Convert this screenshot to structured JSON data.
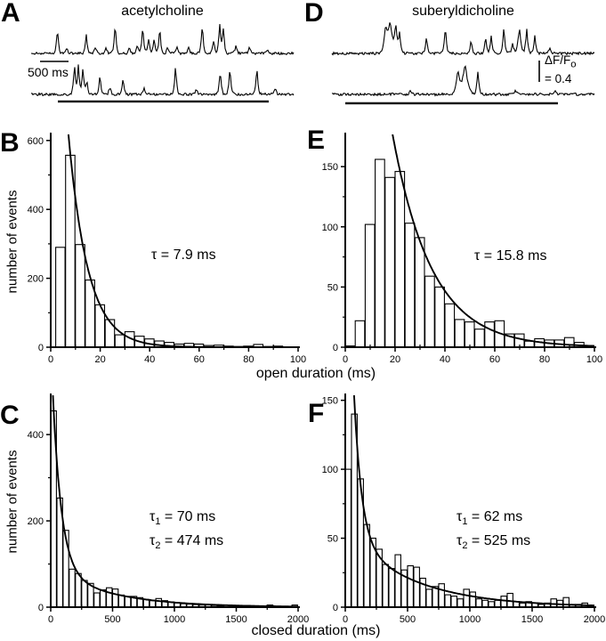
{
  "figure_color": "#000000",
  "background_color": "#ffffff",
  "traces": {
    "left": {
      "letter": "A",
      "title": "acetylcholine",
      "scalebar_label": "500 ms",
      "trace1_spikes": [
        [
          0.1,
          0.8
        ],
        [
          0.135,
          0.2
        ],
        [
          0.21,
          0.62
        ],
        [
          0.245,
          0.22
        ],
        [
          0.285,
          0.18
        ],
        [
          0.32,
          0.95
        ],
        [
          0.375,
          0.2
        ],
        [
          0.405,
          0.28
        ],
        [
          0.425,
          0.88
        ],
        [
          0.447,
          0.52
        ],
        [
          0.468,
          0.48
        ],
        [
          0.49,
          0.82
        ],
        [
          0.52,
          0.2
        ],
        [
          0.555,
          0.24
        ],
        [
          0.6,
          0.18
        ],
        [
          0.652,
          0.93
        ],
        [
          0.695,
          0.42
        ],
        [
          0.718,
          1.0
        ],
        [
          0.732,
          0.88
        ],
        [
          0.78,
          0.28
        ],
        [
          0.832,
          0.25
        ],
        [
          0.9,
          0.15
        ]
      ],
      "trace2_spikes": [
        [
          0.165,
          1.0
        ],
        [
          0.18,
          0.98
        ],
        [
          0.197,
          0.85
        ],
        [
          0.212,
          0.45
        ],
        [
          0.262,
          0.6
        ],
        [
          0.3,
          0.25
        ],
        [
          0.35,
          0.55
        ],
        [
          0.43,
          0.2
        ],
        [
          0.55,
          0.95
        ],
        [
          0.63,
          0.18
        ],
        [
          0.72,
          0.78
        ],
        [
          0.757,
          0.85
        ],
        [
          0.86,
          0.9
        ],
        [
          0.93,
          0.2
        ]
      ]
    },
    "right": {
      "letter": "D",
      "title": "suberyldicholine",
      "scalebar": {
        "main": "ΔF/F",
        "sub": "o",
        "value": "= 0.4"
      },
      "trace1_spikes": [
        [
          0.205,
          0.85,
          2.5
        ],
        [
          0.222,
          1.0,
          3
        ],
        [
          0.243,
          0.95,
          2
        ],
        [
          0.258,
          0.68
        ],
        [
          0.36,
          0.55
        ],
        [
          0.432,
          0.88
        ],
        [
          0.53,
          0.42
        ],
        [
          0.585,
          0.55
        ],
        [
          0.607,
          0.62
        ],
        [
          0.655,
          0.88
        ],
        [
          0.688,
          0.38
        ],
        [
          0.714,
          0.85,
          2.2
        ],
        [
          0.742,
          0.85
        ],
        [
          0.773,
          0.58
        ],
        [
          0.83,
          0.2
        ]
      ],
      "trace2_spikes": [
        [
          0.3,
          0.15
        ],
        [
          0.48,
          0.8,
          2.5
        ],
        [
          0.507,
          1.0,
          3.5
        ],
        [
          0.556,
          0.78
        ],
        [
          0.7,
          0.15
        ],
        [
          0.85,
          0.12
        ]
      ]
    }
  },
  "axis_labels": {
    "ylabel": "number of events",
    "open_xlabel": "open duration (ms)",
    "closed_xlabel": "closed duration (ms)"
  },
  "panel_letters": {
    "B": "B",
    "C": "C",
    "E": "E",
    "F": "F"
  },
  "chart_data": [
    {
      "panel": "B",
      "type": "bar",
      "xlabel": "open duration (ms)",
      "ylabel": "number of events",
      "xlim": [
        0,
        100
      ],
      "ylim": [
        0,
        615
      ],
      "xticks": [
        0,
        20,
        40,
        60,
        80,
        100
      ],
      "xminor": [
        10,
        30,
        50,
        70,
        90
      ],
      "yticks": [
        0,
        200,
        400,
        600
      ],
      "yminor": [
        100,
        300,
        500
      ],
      "bin_start": 2,
      "bin_width": 4,
      "values": [
        290,
        557,
        298,
        195,
        123,
        80,
        36,
        45,
        32,
        24,
        18,
        14,
        9,
        11,
        9,
        5,
        6,
        3,
        2,
        3,
        8,
        2,
        3
      ],
      "fit": {
        "type": "exponential",
        "components": [
          {
            "A": 1529,
            "tau": 7.9
          }
        ]
      },
      "annotation": {
        "text": "τ = 7.9 ms",
        "lines": [
          {
            "sym": "τ",
            "sub": "",
            "rest": " = 7.9 ms"
          }
        ]
      }
    },
    {
      "panel": "E",
      "type": "bar",
      "xlabel": "open duration (ms)",
      "ylabel": "number of events",
      "xlim": [
        0,
        100
      ],
      "ylim": [
        0,
        176
      ],
      "xticks": [
        0,
        20,
        40,
        60,
        80,
        100
      ],
      "xminor": [
        10,
        30,
        50,
        70,
        90
      ],
      "yticks": [
        0,
        50,
        100,
        150
      ],
      "yminor": [
        25,
        75,
        125
      ],
      "bin_start": 0,
      "bin_width": 4,
      "values": [
        1,
        22,
        102,
        156,
        141,
        146,
        103,
        91,
        59,
        50,
        36,
        23,
        21,
        15,
        21,
        22,
        11,
        11,
        5,
        7,
        6,
        6,
        8,
        4
      ],
      "fit": {
        "type": "exponential",
        "components": [
          {
            "A": 588,
            "tau": 15.8
          }
        ]
      },
      "annotation": {
        "text": "τ = 15.8 ms",
        "lines": [
          {
            "sym": "τ",
            "sub": "",
            "rest": " = 15.8 ms"
          }
        ]
      }
    },
    {
      "panel": "C",
      "type": "bar",
      "xlabel": "closed duration (ms)",
      "ylabel": "number of events",
      "xlim": [
        0,
        2000
      ],
      "ylim": [
        0,
        489
      ],
      "xticks": [
        0,
        500,
        1000,
        1500,
        2000
      ],
      "xminor": [
        250,
        750,
        1250,
        1750
      ],
      "yticks": [
        0,
        200,
        400
      ],
      "yminor": [
        100,
        300
      ],
      "bin_start": 0,
      "bin_width": 50,
      "values": [
        455,
        253,
        178,
        88,
        78,
        62,
        55,
        33,
        40,
        45,
        42,
        28,
        25,
        25,
        22,
        18,
        15,
        20,
        15,
        12,
        10,
        8,
        7,
        6,
        5,
        5,
        4,
        3,
        5,
        3,
        2,
        2,
        2,
        2,
        2,
        5,
        2,
        2,
        2,
        5
      ],
      "fit": {
        "type": "double-exponential",
        "components": [
          {
            "A": 520,
            "tau": 70
          },
          {
            "A": 90,
            "tau": 474
          }
        ]
      },
      "annotation": {
        "text": "τ1 = 70 ms / τ2 = 474 ms",
        "lines": [
          {
            "sym": "τ",
            "sub": "1",
            "rest": " = 70 ms"
          },
          {
            "sym": "τ",
            "sub": "2",
            "rest": " = 474 ms"
          }
        ]
      }
    },
    {
      "panel": "F",
      "type": "bar",
      "xlabel": "closed duration (ms)",
      "ylabel": "number of events",
      "xlim": [
        0,
        2000
      ],
      "ylim": [
        0,
        153
      ],
      "xticks": [
        0,
        500,
        1000,
        1500,
        2000
      ],
      "xminor": [
        250,
        750,
        1250,
        1750
      ],
      "yticks": [
        0,
        50,
        100,
        150
      ],
      "yminor": [
        25,
        75,
        125
      ],
      "bin_start": 0,
      "bin_width": 50,
      "values": [
        100,
        140,
        93,
        60,
        50,
        42,
        31,
        28,
        38,
        27,
        30,
        29,
        21,
        13,
        15,
        17,
        9,
        8,
        6,
        13,
        11,
        6,
        5,
        4,
        5,
        8,
        10,
        4,
        3,
        4,
        3,
        2,
        3,
        6,
        5,
        7,
        2,
        2,
        3,
        1
      ],
      "fit": {
        "type": "double-exponential",
        "components": [
          {
            "A": 330,
            "tau": 62
          },
          {
            "A": 55,
            "tau": 525
          }
        ]
      },
      "annotation": {
        "text": "τ1 = 62 ms / τ2 = 525 ms",
        "lines": [
          {
            "sym": "τ",
            "sub": "1",
            "rest": " = 62 ms"
          },
          {
            "sym": "τ",
            "sub": "2",
            "rest": " = 525 ms"
          }
        ]
      }
    }
  ]
}
